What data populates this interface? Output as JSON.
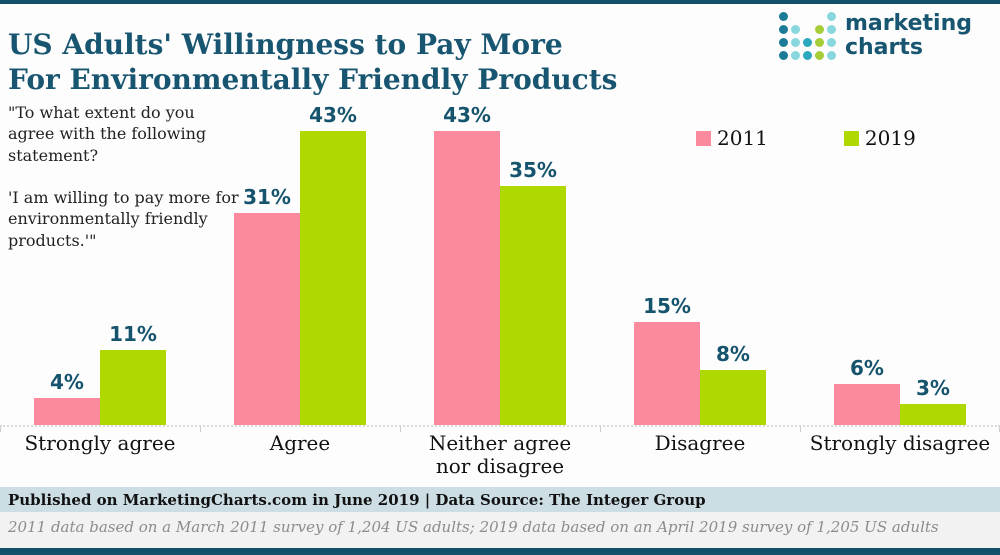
{
  "page": {
    "title": "US Adults' Willingness to Pay More\nFor Environmentally Friendly Products",
    "question": "\"To what extent do you agree with the following statement?\n\n'I am willing to pay more for environmentally friendly products.'\"",
    "footer": "Published on MarketingCharts.com in June 2019 | Data Source: The Integer Group",
    "footnote": "2011 data based on a March 2011 survey of 1,204 US adults; 2019 data based on an April 2019 survey of 1,205 US adults"
  },
  "logo": {
    "text": "marketing\ncharts",
    "dot_colors": {
      "dark": "#1b7a96",
      "light": "#87d7dc",
      "mid": "#2ba8bd",
      "green": "#a6ce39"
    },
    "dot_grid": [
      [
        "dark",
        "",
        "",
        "",
        "light"
      ],
      [
        "dark",
        "light",
        "",
        "green",
        "light"
      ],
      [
        "dark",
        "light",
        "mid",
        "green",
        "light"
      ],
      [
        "dark",
        "light",
        "mid",
        "green",
        "light"
      ]
    ]
  },
  "colors": {
    "accent_teal": "#14506a",
    "title_teal": "#175570",
    "value_label_teal": "#16546e",
    "footer_bg": "#ccdde3",
    "footnote_bg": "#f2f2f2",
    "series_2011": "#fb8a9e",
    "series_2019": "#afd700"
  },
  "chart_data": {
    "type": "bar",
    "title": "US Adults' Willingness to Pay More For Environmentally Friendly Products",
    "categories": [
      "Strongly agree",
      "Agree",
      "Neither agree\nnor disagree",
      "Disagree",
      "Strongly disagree"
    ],
    "series": [
      {
        "name": "2011",
        "color": "#fb8a9e",
        "values": [
          4,
          31,
          43,
          15,
          6
        ]
      },
      {
        "name": "2019",
        "color": "#afd700",
        "values": [
          11,
          43,
          35,
          8,
          3
        ]
      }
    ],
    "value_suffix": "%",
    "xlabel": "",
    "ylabel": "",
    "ylim": [
      0,
      45
    ],
    "grid": false,
    "legend_position": "top-right",
    "data_labels": true
  }
}
